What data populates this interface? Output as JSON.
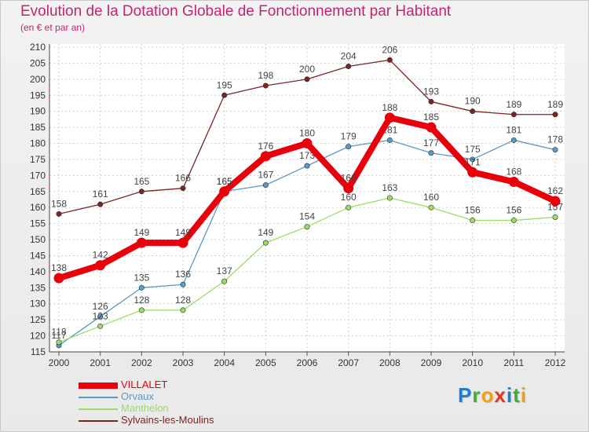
{
  "title": "Evolution de la Dotation Globale de Fonctionnement par Habitant",
  "subtitle": "(en € et par an)",
  "logo": {
    "letters": [
      "P",
      "r",
      "o",
      "x",
      "i",
      "t",
      "i"
    ],
    "colors": [
      "#1a7fd0",
      "#4aa83a",
      "#f0a010",
      "#e03a1e",
      "#1a7fd0",
      "#4aa83a",
      "#f0a010"
    ]
  },
  "chart_data": {
    "type": "line",
    "x": [
      "2000",
      "2001",
      "2002",
      "2003",
      "2004",
      "2005",
      "2006",
      "2007",
      "2008",
      "2009",
      "2010",
      "2011",
      "2012"
    ],
    "ylim": [
      115,
      210
    ],
    "yticks": [
      115,
      120,
      125,
      130,
      135,
      140,
      145,
      150,
      155,
      160,
      165,
      170,
      175,
      180,
      185,
      190,
      195,
      200,
      205,
      210
    ],
    "grid": true,
    "legend_position": "bottom-left",
    "series": [
      {
        "name": "VILLALET",
        "color": "#e8000b",
        "bold": true,
        "values": [
          138,
          142,
          149,
          149,
          165,
          176,
          180,
          166,
          188,
          185,
          171,
          168,
          162
        ],
        "labels": [
          "138",
          "142",
          "149",
          "149",
          "165",
          "176",
          "180",
          "166",
          "188",
          "185",
          "171",
          "168",
          "162"
        ]
      },
      {
        "name": "Orvaux",
        "color": "#5a9ac8",
        "bold": false,
        "values": [
          117,
          126,
          135,
          136,
          165,
          167,
          173,
          179,
          181,
          177,
          175,
          181,
          178
        ],
        "labels": [
          "117",
          "126",
          "135",
          "136",
          "165",
          "167",
          "173",
          "179",
          "181",
          "177",
          "175",
          "181",
          "178"
        ]
      },
      {
        "name": "Manthelon",
        "color": "#99dd66",
        "bold": false,
        "values": [
          118,
          123,
          128,
          128,
          137,
          149,
          154,
          160,
          163,
          160,
          156,
          156,
          157
        ],
        "labels": [
          "118",
          "123",
          "128",
          "128",
          "137",
          "149",
          "154",
          "160",
          "163",
          "160",
          "156",
          "156",
          "157"
        ]
      },
      {
        "name": "Sylvains-les-Moulins",
        "color": "#7a2424",
        "bold": false,
        "values": [
          158,
          161,
          165,
          166,
          195,
          198,
          200,
          204,
          206,
          193,
          190,
          189,
          189
        ],
        "labels": [
          "158",
          "161",
          "165",
          "166",
          "195",
          "198",
          "200",
          "204",
          "206",
          "193",
          "190",
          "189",
          "189"
        ]
      }
    ]
  }
}
